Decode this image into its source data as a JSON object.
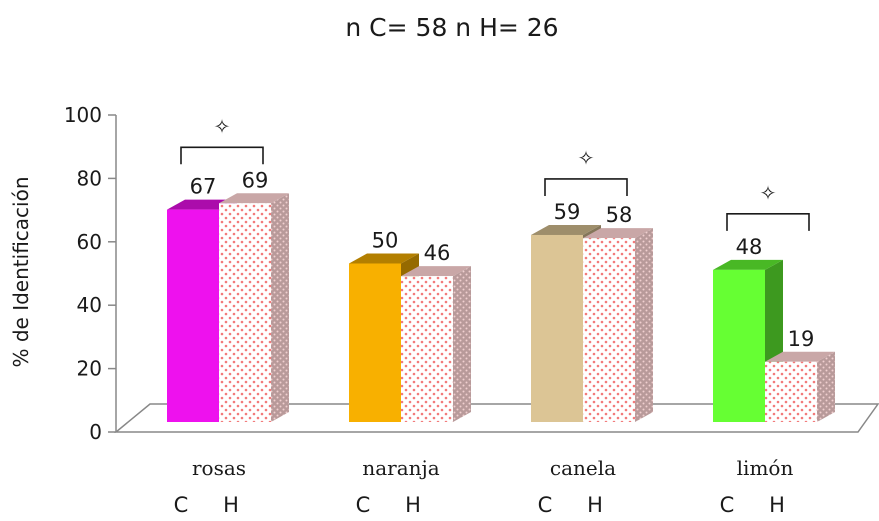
{
  "chart_data": {
    "type": "bar",
    "title": "n C= 58 n H= 26",
    "ylabel": "% de Identificación",
    "ylim": [
      0,
      100
    ],
    "yticks": [
      0,
      20,
      40,
      60,
      80,
      100
    ],
    "categories": [
      "rosas",
      "naranja",
      "canela",
      "limón"
    ],
    "group_labels": [
      "C",
      "H"
    ],
    "series": [
      {
        "name": "C",
        "values": [
          67,
          50,
          59,
          48
        ],
        "colors": [
          "#ee11ee",
          "#f8b000",
          "#dcc595",
          "#66ff33"
        ]
      },
      {
        "name": "H",
        "values": [
          69,
          46,
          58,
          19
        ],
        "pattern": "white with red dots"
      }
    ],
    "significance": {
      "symbol": "✧",
      "categories": [
        "rosas",
        "canela",
        "limón"
      ]
    },
    "grid": false,
    "legend": "none",
    "style": "3d-columns"
  }
}
